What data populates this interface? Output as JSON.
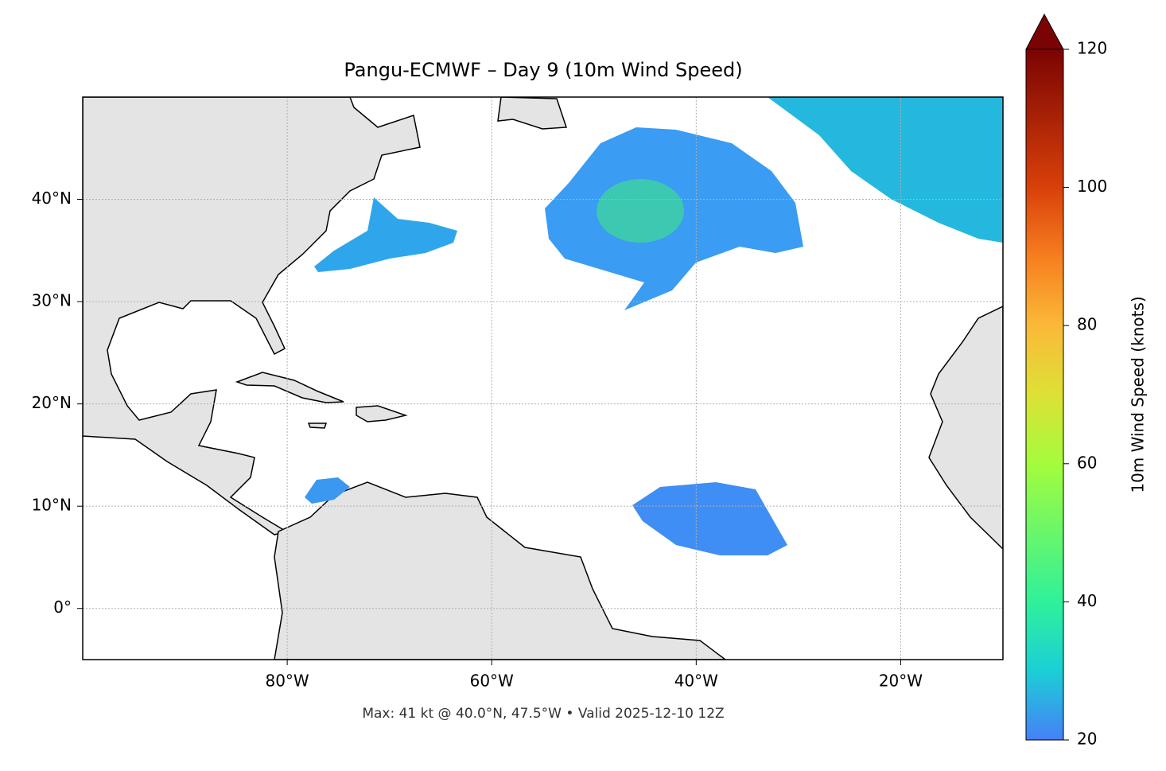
{
  "chart_data": {
    "type": "map",
    "title": "Pangu-ECMWF – Day 9 (10m Wind Speed)",
    "footnote": "Max: 41 kt @ 40.0°N, 47.5°W • Valid 2025-12-10 12Z",
    "xlim": [
      -100,
      -10
    ],
    "ylim": [
      -5,
      50
    ],
    "xticks": [
      {
        "value": -80,
        "label": "80°W"
      },
      {
        "value": -60,
        "label": "60°W"
      },
      {
        "value": -40,
        "label": "40°W"
      },
      {
        "value": -20,
        "label": "20°W"
      }
    ],
    "yticks": [
      {
        "value": 0,
        "label": "0°"
      },
      {
        "value": 10,
        "label": "10°N"
      },
      {
        "value": 20,
        "label": "20°N"
      },
      {
        "value": 30,
        "label": "30°N"
      },
      {
        "value": 40,
        "label": "40°N"
      }
    ],
    "grid": true,
    "colorbar": {
      "label": "10m Wind Speed (knots)",
      "lim": [
        20,
        120
      ],
      "ticks": [
        20,
        40,
        60,
        80,
        100,
        120
      ]
    }
  }
}
